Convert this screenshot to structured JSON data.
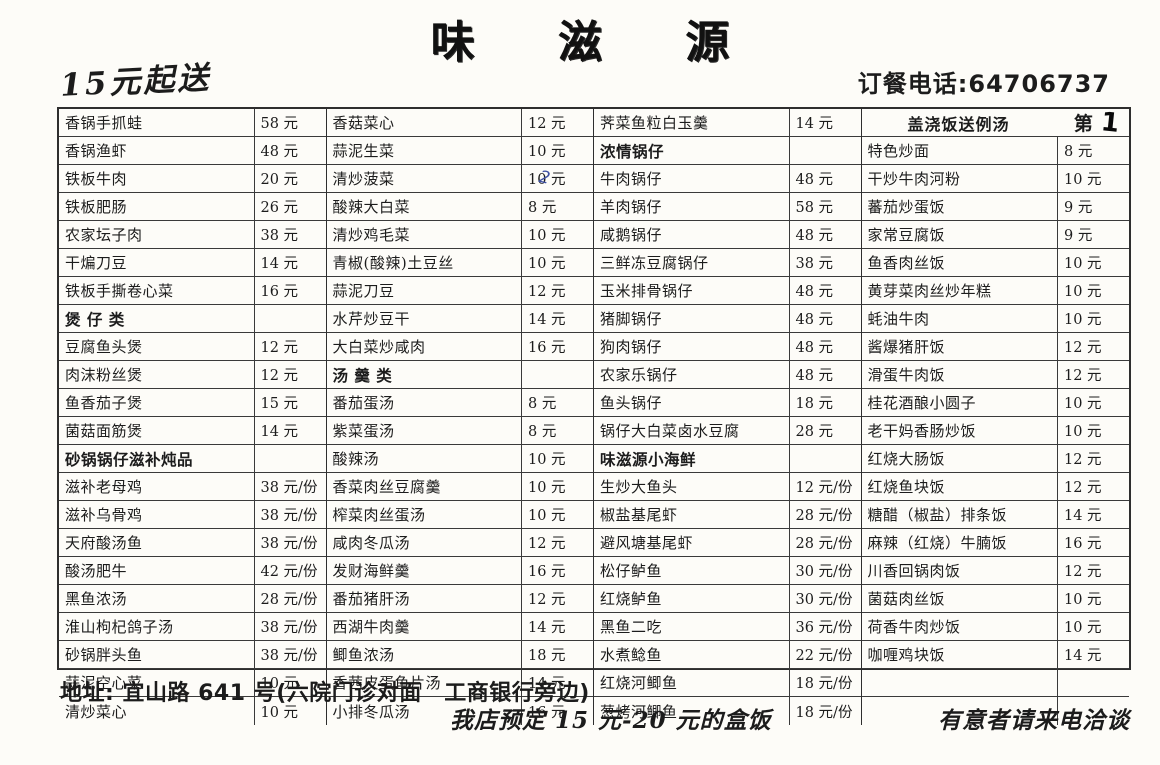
{
  "header": {
    "title": "味 滋 源",
    "min_order": "15元起送",
    "phone": "订餐电话:64706737"
  },
  "table": {
    "columns": [
      {
        "rows": [
          {
            "t": "dish",
            "name": "香锅手抓蛙",
            "price": "58 元"
          },
          {
            "t": "dish",
            "name": "香锅渔虾",
            "price": "48 元"
          },
          {
            "t": "dish",
            "name": "铁板牛肉",
            "price": "20 元"
          },
          {
            "t": "dish",
            "name": "铁板肥肠",
            "price": "26 元"
          },
          {
            "t": "dish",
            "name": "农家坛子肉",
            "price": "38 元"
          },
          {
            "t": "dish",
            "name": "干煸刀豆",
            "price": "14 元"
          },
          {
            "t": "dish",
            "name": "铁板手撕卷心菜",
            "price": "16 元"
          },
          {
            "t": "cat",
            "name": "煲 仔 类"
          },
          {
            "t": "dish",
            "name": "豆腐鱼头煲",
            "price": "12 元"
          },
          {
            "t": "dish",
            "name": "肉沫粉丝煲",
            "price": "12 元"
          },
          {
            "t": "dish",
            "name": "鱼香茄子煲",
            "price": "15 元"
          },
          {
            "t": "dish",
            "name": "菌菇面筋煲",
            "price": "14 元"
          },
          {
            "t": "cat",
            "name": "砂锅锅仔滋补炖品"
          },
          {
            "t": "dish",
            "name": "滋补老母鸡",
            "price": "38 元/份"
          },
          {
            "t": "dish",
            "name": "滋补乌骨鸡",
            "price": "38 元/份"
          },
          {
            "t": "dish",
            "name": "天府酸汤鱼",
            "price": "38 元/份"
          },
          {
            "t": "dish",
            "name": "酸汤肥牛",
            "price": "42 元/份"
          },
          {
            "t": "dish",
            "name": "黑鱼浓汤",
            "price": "28 元/份"
          },
          {
            "t": "dish",
            "name": "淮山枸杞鸽子汤",
            "price": "38 元/份"
          },
          {
            "t": "dish",
            "name": "砂锅胖头鱼",
            "price": "38 元/份"
          },
          {
            "t": "dish",
            "name": "蒜泥空心菜",
            "price": "10 元"
          },
          {
            "t": "dish",
            "name": "清炒菜心",
            "price": "10 元"
          }
        ]
      },
      {
        "rows": [
          {
            "t": "dish",
            "name": "香菇菜心",
            "price": "12 元"
          },
          {
            "t": "dish",
            "name": "蒜泥生菜",
            "price": "10 元"
          },
          {
            "t": "dish",
            "name": "清炒菠菜",
            "price": "10 元",
            "pen": "2"
          },
          {
            "t": "dish",
            "name": "酸辣大白菜",
            "price": "8 元"
          },
          {
            "t": "dish",
            "name": "清炒鸡毛菜",
            "price": "10 元"
          },
          {
            "t": "dish",
            "name": "青椒(酸辣)土豆丝",
            "price": "10 元"
          },
          {
            "t": "dish",
            "name": "蒜泥刀豆",
            "price": "12 元"
          },
          {
            "t": "dish",
            "name": "水芹炒豆干",
            "price": "14 元"
          },
          {
            "t": "dish",
            "name": "大白菜炒咸肉",
            "price": "16 元"
          },
          {
            "t": "cat",
            "name": "汤 羹 类"
          },
          {
            "t": "dish",
            "name": "番茄蛋汤",
            "price": "8 元"
          },
          {
            "t": "dish",
            "name": "紫菜蛋汤",
            "price": "8 元"
          },
          {
            "t": "dish",
            "name": "酸辣汤",
            "price": "10 元"
          },
          {
            "t": "dish",
            "name": "香菜肉丝豆腐羹",
            "price": "10 元"
          },
          {
            "t": "dish",
            "name": "榨菜肉丝蛋汤",
            "price": "10 元"
          },
          {
            "t": "dish",
            "name": "咸肉冬瓜汤",
            "price": "12 元"
          },
          {
            "t": "dish",
            "name": "发财海鲜羹",
            "price": "16 元"
          },
          {
            "t": "dish",
            "name": "番茄猪肝汤",
            "price": "12 元"
          },
          {
            "t": "dish",
            "name": "西湖牛肉羹",
            "price": "14 元"
          },
          {
            "t": "dish",
            "name": "鲫鱼浓汤",
            "price": "18 元"
          },
          {
            "t": "dish",
            "name": "香茜皮蛋鱼片汤",
            "price": "14 元"
          },
          {
            "t": "dish",
            "name": "小排冬瓜汤",
            "price": "16 元"
          }
        ]
      },
      {
        "rows": [
          {
            "t": "dish",
            "name": "荠菜鱼粒白玉羹",
            "price": "14 元"
          },
          {
            "t": "cat",
            "name": "浓情锅仔"
          },
          {
            "t": "dish",
            "name": "牛肉锅仔",
            "price": "48 元"
          },
          {
            "t": "dish",
            "name": "羊肉锅仔",
            "price": "58 元"
          },
          {
            "t": "dish",
            "name": "咸鹅锅仔",
            "price": "48 元"
          },
          {
            "t": "dish",
            "name": "三鲜冻豆腐锅仔",
            "price": "38 元"
          },
          {
            "t": "dish",
            "name": "玉米排骨锅仔",
            "price": "48 元"
          },
          {
            "t": "dish",
            "name": "猪脚锅仔",
            "price": "48 元"
          },
          {
            "t": "dish",
            "name": "狗肉锅仔",
            "price": "48 元"
          },
          {
            "t": "dish",
            "name": "农家乐锅仔",
            "price": "48 元"
          },
          {
            "t": "dish",
            "name": "鱼头锅仔",
            "price": "18 元"
          },
          {
            "t": "dish",
            "name": "锅仔大白菜卤水豆腐",
            "price": "28 元"
          },
          {
            "t": "cat",
            "name": "味滋源小海鲜"
          },
          {
            "t": "dish",
            "name": "生炒大鱼头",
            "price": "12 元/份"
          },
          {
            "t": "dish",
            "name": "椒盐基尾虾",
            "price": "28 元/份"
          },
          {
            "t": "dish",
            "name": "避风塘基尾虾",
            "price": "28 元/份"
          },
          {
            "t": "dish",
            "name": "松仔鲈鱼",
            "price": "30 元/份"
          },
          {
            "t": "dish",
            "name": "红烧鲈鱼",
            "price": "30 元/份"
          },
          {
            "t": "dish",
            "name": "黑鱼二吃",
            "price": "36 元/份"
          },
          {
            "t": "dish",
            "name": "水煮鲶鱼",
            "price": "22 元/份"
          },
          {
            "t": "dish",
            "name": "红烧河鲫鱼",
            "price": "18 元/份"
          },
          {
            "t": "dish",
            "name": "葱烤河鲫鱼",
            "price": "18 元/份"
          }
        ]
      },
      {
        "rows": [
          {
            "t": "header",
            "name": "盖浇饭送例汤",
            "tag": "第",
            "hand": "1"
          },
          {
            "t": "dish",
            "name": "特色炒面",
            "price": "8 元"
          },
          {
            "t": "dish",
            "name": "干炒牛肉河粉",
            "price": "10 元"
          },
          {
            "t": "dish",
            "name": "蕃茄炒蛋饭",
            "price": "9 元"
          },
          {
            "t": "dish",
            "name": "家常豆腐饭",
            "price": "9 元"
          },
          {
            "t": "dish",
            "name": "鱼香肉丝饭",
            "price": "10 元"
          },
          {
            "t": "dish",
            "name": "黄芽菜肉丝炒年糕",
            "price": "10 元"
          },
          {
            "t": "dish",
            "name": "蚝油牛肉",
            "price": "10 元"
          },
          {
            "t": "dish",
            "name": "酱爆猪肝饭",
            "price": "12 元"
          },
          {
            "t": "dish",
            "name": "滑蛋牛肉饭",
            "price": "12 元"
          },
          {
            "t": "dish",
            "name": "桂花酒酿小圆子",
            "price": "10 元"
          },
          {
            "t": "dish",
            "name": "老干妈香肠炒饭",
            "price": "10 元"
          },
          {
            "t": "dish",
            "name": "红烧大肠饭",
            "price": "12 元"
          },
          {
            "t": "dish",
            "name": "红烧鱼块饭",
            "price": "12 元"
          },
          {
            "t": "dish",
            "name": "糖醋（椒盐）排条饭",
            "price": "14 元"
          },
          {
            "t": "dish",
            "name": "麻辣（红烧）牛腩饭",
            "price": "16 元"
          },
          {
            "t": "dish",
            "name": "川香回锅肉饭",
            "price": "12 元"
          },
          {
            "t": "dish",
            "name": "菌菇肉丝饭",
            "price": "10 元"
          },
          {
            "t": "dish",
            "name": "荷香牛肉炒饭",
            "price": "10 元"
          },
          {
            "t": "dish",
            "name": "咖喱鸡块饭",
            "price": "14 元"
          },
          {
            "t": "empty"
          },
          {
            "t": "empty"
          }
        ]
      }
    ]
  },
  "footer": {
    "address": "地址: 宜山路 641 号(六院门诊对面　工商银行旁边)",
    "note_left": "我店预定 15 元-20 元的盒饭",
    "note_right": "有意者请来电洽谈"
  }
}
